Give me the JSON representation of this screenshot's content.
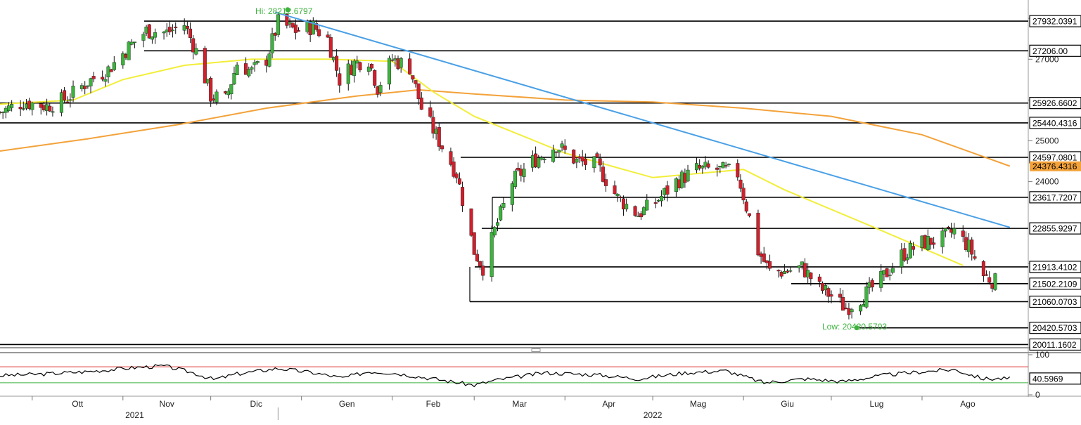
{
  "colors": {
    "background": "#ffffff",
    "up": "#3db33d",
    "down": "#d0202c",
    "sma_fast": "#f2ee3a",
    "sma_slow": "#f3a23a",
    "trendline": "#4aa0e6",
    "level": "#000000",
    "hi_low": "#3db33d",
    "rsi_line": "#000000",
    "rsi_upper": "#e23a3a",
    "rsi_lower": "#3db33d",
    "current_tag": "#f3a23a"
  },
  "chart_data": {
    "type": "candlestick",
    "title": "",
    "ylim": [
      19950,
      28450
    ],
    "y_ticks": [
      22000,
      24000,
      25000,
      26000,
      27000,
      28000
    ],
    "y_tick_labels": [
      "",
      "24000",
      "25000",
      "",
      "27000",
      ""
    ],
    "x_ticks": [
      "Ott",
      "Nov",
      "Dic",
      "Gen",
      "Feb",
      "Mar",
      "Apr",
      "Mag",
      "Giu",
      "Lug",
      "Ago"
    ],
    "x_years": [
      "2021",
      "2022"
    ],
    "annotations": {
      "hi": {
        "label": "Hi: 28212.6797",
        "value": 28212.6797
      },
      "low": {
        "label": "Low: 20420.5703",
        "value": 20420.5703
      }
    },
    "levels": [
      {
        "label": "27932.0391",
        "value": 27932.0391
      },
      {
        "label": "27206.00",
        "value": 27206.0
      },
      {
        "label": "25926.6602",
        "value": 25926.6602
      },
      {
        "label": "25440.4316",
        "value": 25440.4316
      },
      {
        "label": "24597.0801",
        "value": 24597.0801
      },
      {
        "label": "23617.7207",
        "value": 23617.7207
      },
      {
        "label": "22855.9297",
        "value": 22855.9297
      },
      {
        "label": "21913.4102",
        "value": 21913.4102
      },
      {
        "label": "21502.2109",
        "value": 21502.2109
      },
      {
        "label": "21060.0703",
        "value": 21060.0703
      },
      {
        "label": "20420.5703",
        "value": 20420.5703
      },
      {
        "label": "20011.1602",
        "value": 20011.1602
      }
    ],
    "current_value": {
      "label": "24376.4316",
      "value": 24376.4316
    },
    "trendline": {
      "start": [
        "2021-12-23",
        28150
      ],
      "end": [
        "2022-08-31",
        22880
      ]
    },
    "close_path": [
      [
        "2021-09-20",
        25700
      ],
      [
        "2021-09-28",
        25950
      ],
      [
        "2021-10-06",
        25850
      ],
      [
        "2021-10-13",
        26050
      ],
      [
        "2021-10-20",
        26450
      ],
      [
        "2021-10-27",
        26750
      ],
      [
        "2021-11-03",
        27300
      ],
      [
        "2021-11-09",
        27700
      ],
      [
        "2021-11-16",
        27650
      ],
      [
        "2021-11-22",
        27850
      ],
      [
        "2021-11-26",
        27200
      ],
      [
        "2021-12-01",
        26100
      ],
      [
        "2021-12-06",
        26000
      ],
      [
        "2021-12-10",
        26900
      ],
      [
        "2021-12-15",
        26700
      ],
      [
        "2021-12-20",
        27000
      ],
      [
        "2021-12-24",
        27900
      ],
      [
        "2021-12-30",
        27700
      ],
      [
        "2022-01-05",
        27800
      ],
      [
        "2022-01-10",
        27500
      ],
      [
        "2022-01-14",
        26500
      ],
      [
        "2022-01-19",
        26900
      ],
      [
        "2022-01-24",
        27000
      ],
      [
        "2022-01-27",
        26300
      ],
      [
        "2022-02-01",
        27000
      ],
      [
        "2022-02-07",
        26800
      ],
      [
        "2022-02-11",
        25800
      ],
      [
        "2022-02-17",
        25000
      ],
      [
        "2022-02-23",
        24200
      ],
      [
        "2022-03-01",
        22300
      ],
      [
        "2022-03-04",
        21900
      ],
      [
        "2022-03-08",
        22800
      ],
      [
        "2022-03-14",
        24000
      ],
      [
        "2022-03-21",
        24500
      ],
      [
        "2022-03-29",
        24900
      ],
      [
        "2022-04-05",
        24500
      ],
      [
        "2022-04-12",
        24400
      ],
      [
        "2022-04-19",
        23600
      ],
      [
        "2022-04-26",
        23200
      ],
      [
        "2022-05-02",
        23500
      ],
      [
        "2022-05-09",
        24000
      ],
      [
        "2022-05-16",
        24300
      ],
      [
        "2022-05-23",
        24300
      ],
      [
        "2022-05-30",
        24200
      ],
      [
        "2022-06-06",
        22300
      ],
      [
        "2022-06-10",
        21800
      ],
      [
        "2022-06-15",
        21800
      ],
      [
        "2022-06-21",
        21900
      ],
      [
        "2022-06-27",
        21400
      ],
      [
        "2022-07-01",
        21200
      ],
      [
        "2022-07-06",
        20900
      ],
      [
        "2022-07-12",
        21200
      ],
      [
        "2022-07-18",
        21600
      ],
      [
        "2022-07-25",
        22200
      ],
      [
        "2022-08-01",
        22500
      ],
      [
        "2022-08-08",
        22600
      ],
      [
        "2022-08-12",
        22800
      ],
      [
        "2022-08-17",
        22400
      ],
      [
        "2022-08-22",
        21700
      ],
      [
        "2022-08-26",
        21550
      ]
    ],
    "sma_fast_path": [
      [
        "2021-09-20",
        25900
      ],
      [
        "2021-10-15",
        26000
      ],
      [
        "2021-11-01",
        26500
      ],
      [
        "2021-11-22",
        26850
      ],
      [
        "2021-12-15",
        27000
      ],
      [
        "2022-01-10",
        27000
      ],
      [
        "2022-02-01",
        26950
      ],
      [
        "2022-02-15",
        26200
      ],
      [
        "2022-03-01",
        25600
      ],
      [
        "2022-04-01",
        24700
      ],
      [
        "2022-05-01",
        24100
      ],
      [
        "2022-06-01",
        24300
      ],
      [
        "2022-06-15",
        23800
      ],
      [
        "2022-07-15",
        22900
      ],
      [
        "2022-08-15",
        21950
      ]
    ],
    "sma_slow_path": [
      [
        "2021-09-20",
        24750
      ],
      [
        "2021-10-20",
        25050
      ],
      [
        "2021-11-20",
        25400
      ],
      [
        "2021-12-20",
        25800
      ],
      [
        "2022-01-20",
        26100
      ],
      [
        "2022-02-10",
        26250
      ],
      [
        "2022-03-01",
        26150
      ],
      [
        "2022-04-01",
        26000
      ],
      [
        "2022-05-01",
        25950
      ],
      [
        "2022-06-01",
        25800
      ],
      [
        "2022-07-01",
        25600
      ],
      [
        "2022-08-01",
        25150
      ],
      [
        "2022-08-31",
        24380
      ]
    ],
    "indicator": {
      "name": "RSI",
      "ylim": [
        0,
        100
      ],
      "y_ticks": [
        0,
        100
      ],
      "upper": 70,
      "lower": 30,
      "current": {
        "label": "40.5969",
        "value": 40.5969
      },
      "path": [
        [
          "2021-09-20",
          48
        ],
        [
          "2021-10-05",
          52
        ],
        [
          "2021-10-20",
          58
        ],
        [
          "2021-11-05",
          68
        ],
        [
          "2021-11-15",
          72
        ],
        [
          "2021-11-25",
          55
        ],
        [
          "2021-12-02",
          38
        ],
        [
          "2021-12-10",
          52
        ],
        [
          "2021-12-24",
          66
        ],
        [
          "2022-01-05",
          55
        ],
        [
          "2022-01-15",
          42
        ],
        [
          "2022-01-24",
          58
        ],
        [
          "2022-02-01",
          55
        ],
        [
          "2022-02-15",
          40
        ],
        [
          "2022-03-01",
          24
        ],
        [
          "2022-03-08",
          36
        ],
        [
          "2022-03-25",
          55
        ],
        [
          "2022-04-12",
          50
        ],
        [
          "2022-04-26",
          40
        ],
        [
          "2022-05-12",
          55
        ],
        [
          "2022-05-26",
          60
        ],
        [
          "2022-06-08",
          30
        ],
        [
          "2022-06-22",
          40
        ],
        [
          "2022-07-05",
          33
        ],
        [
          "2022-07-20",
          50
        ],
        [
          "2022-08-05",
          60
        ],
        [
          "2022-08-12",
          63
        ],
        [
          "2022-08-22",
          40
        ],
        [
          "2022-08-31",
          40.6
        ]
      ]
    }
  }
}
